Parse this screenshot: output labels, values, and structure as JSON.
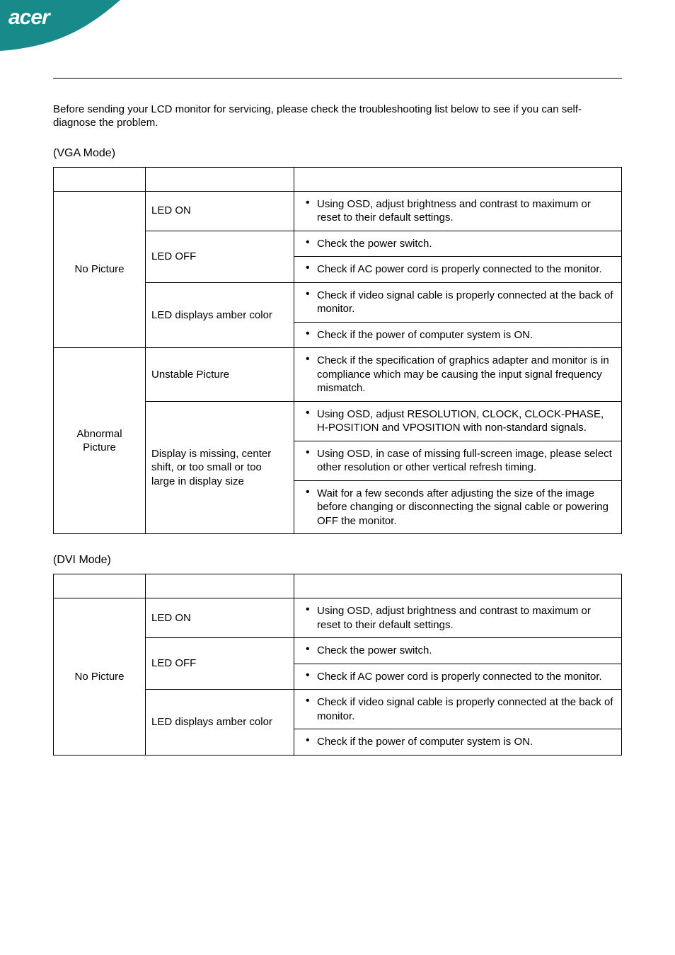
{
  "brand": "acer",
  "intro": "Before sending your LCD monitor for servicing, please check the troubleshooting list below to see if you can self-diagnose the problem.",
  "header_swoosh": {
    "fill_color": "#178a89",
    "logo_color": "#ffffff"
  },
  "tables": [
    {
      "mode_label": "(VGA Mode)",
      "rows": [
        {
          "problem": "No Picture",
          "problem_rowspan": 5,
          "statuses": [
            {
              "label": "LED ON",
              "rowspan": 1,
              "remedies": [
                "Using OSD, adjust brightness and contrast to maximum or reset to their default settings."
              ]
            },
            {
              "label": "LED OFF",
              "rowspan": 2,
              "remedies": [
                "Check the power switch.",
                "Check if AC power cord is properly connected to the monitor."
              ]
            },
            {
              "label": "LED displays amber color",
              "rowspan": 2,
              "remedies": [
                "Check if video signal cable is properly connected at the back of monitor.",
                "Check if the power of computer system is ON."
              ]
            }
          ]
        },
        {
          "problem": "Abnormal Picture",
          "problem_rowspan": 4,
          "statuses": [
            {
              "label": "Unstable Picture",
              "rowspan": 1,
              "remedies": [
                "Check if the specification of graphics adapter and monitor is in compliance which may be causing the input signal frequency mismatch."
              ]
            },
            {
              "label": "Display is missing, center shift, or too small or too large in display size",
              "rowspan": 3,
              "remedies": [
                "Using OSD, adjust RESOLUTION, CLOCK, CLOCK-PHASE, H-POSITION and VPOSITION with non-standard signals.",
                "Using OSD, in case of missing full-screen image, please select other resolution or other vertical refresh timing.",
                "Wait for a few seconds after adjusting the size of the image before changing or disconnecting the signal cable or powering OFF the monitor."
              ]
            }
          ]
        }
      ]
    },
    {
      "mode_label": "(DVI Mode)",
      "rows": [
        {
          "problem": "No Picture",
          "problem_rowspan": 5,
          "statuses": [
            {
              "label": "LED ON",
              "rowspan": 1,
              "remedies": [
                "Using OSD, adjust brightness and contrast to maximum or reset to their default settings."
              ]
            },
            {
              "label": "LED OFF",
              "rowspan": 2,
              "remedies": [
                "Check the power switch.",
                "Check if AC power cord is properly connected to the monitor."
              ]
            },
            {
              "label": "LED displays amber color",
              "rowspan": 2,
              "remedies": [
                "Check if video signal cable is properly connected at the back of monitor.",
                "Check if the power of computer system is ON."
              ]
            }
          ]
        }
      ]
    }
  ]
}
